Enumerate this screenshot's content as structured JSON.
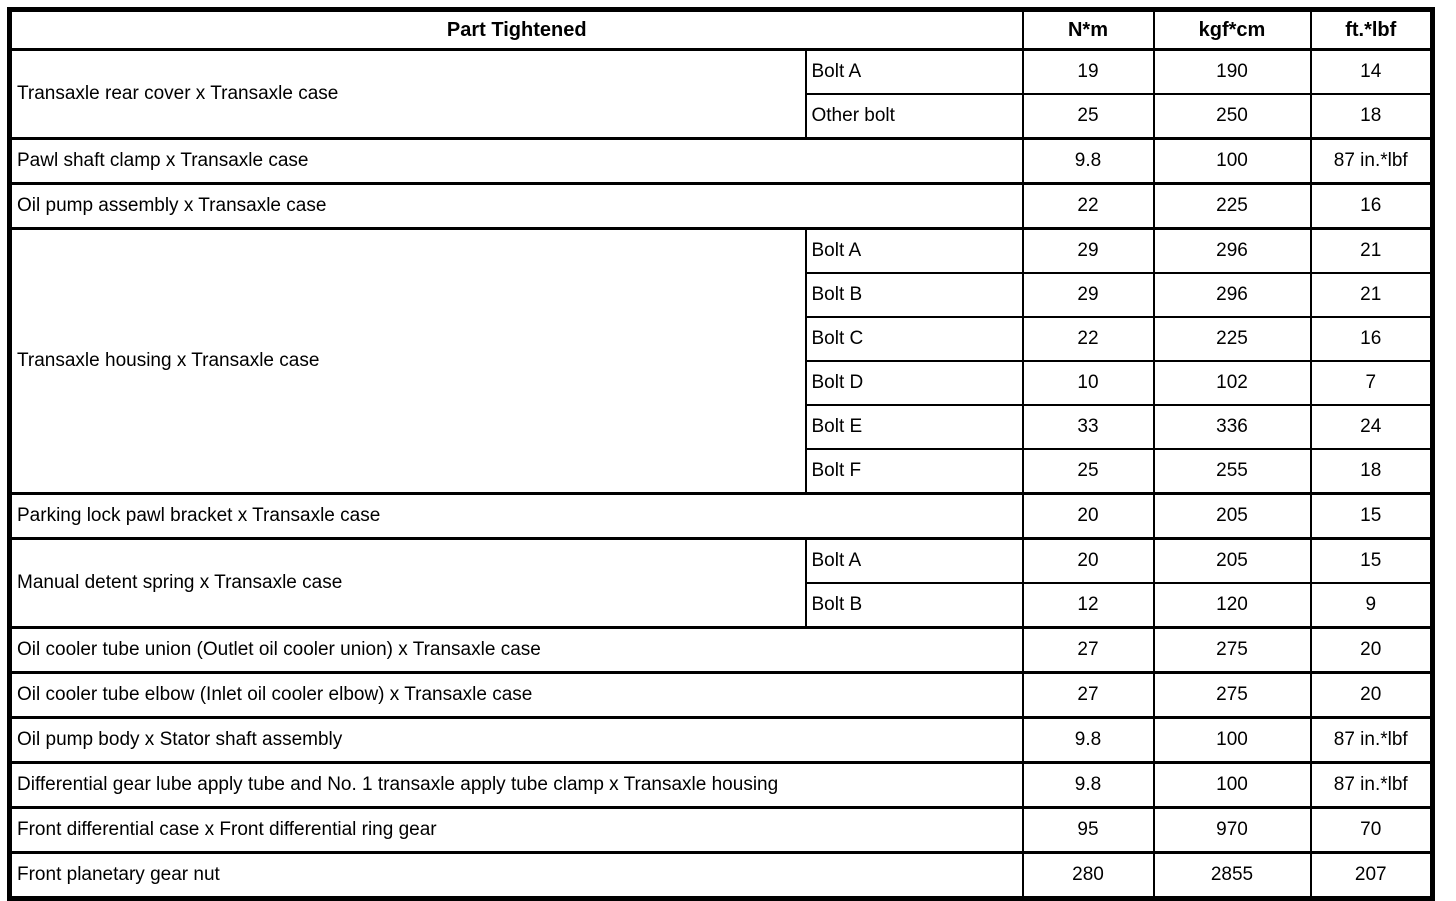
{
  "table": {
    "header": {
      "part_col": "Part Tightened",
      "unit_cols": [
        "N*m",
        "kgf*cm",
        "ft.*lbf"
      ]
    },
    "groups": [
      {
        "part": "Transaxle rear cover x Transaxle case",
        "rows": [
          {
            "label": "Bolt A",
            "nm": "19",
            "kgfcm": "190",
            "ftlbf": "14"
          },
          {
            "label": "Other bolt",
            "nm": "25",
            "kgfcm": "250",
            "ftlbf": "18"
          }
        ]
      },
      {
        "part": "Pawl shaft clamp x Transaxle case",
        "rows": [
          {
            "label": null,
            "nm": "9.8",
            "kgfcm": "100",
            "ftlbf": "87 in.*lbf"
          }
        ]
      },
      {
        "part": "Oil pump assembly x Transaxle case",
        "rows": [
          {
            "label": null,
            "nm": "22",
            "kgfcm": "225",
            "ftlbf": "16"
          }
        ]
      },
      {
        "part": "Transaxle housing x Transaxle case",
        "rows": [
          {
            "label": "Bolt A",
            "nm": "29",
            "kgfcm": "296",
            "ftlbf": "21"
          },
          {
            "label": "Bolt B",
            "nm": "29",
            "kgfcm": "296",
            "ftlbf": "21"
          },
          {
            "label": "Bolt C",
            "nm": "22",
            "kgfcm": "225",
            "ftlbf": "16"
          },
          {
            "label": "Bolt D",
            "nm": "10",
            "kgfcm": "102",
            "ftlbf": "7"
          },
          {
            "label": "Bolt E",
            "nm": "33",
            "kgfcm": "336",
            "ftlbf": "24"
          },
          {
            "label": "Bolt F",
            "nm": "25",
            "kgfcm": "255",
            "ftlbf": "18"
          }
        ]
      },
      {
        "part": "Parking lock pawl bracket x Transaxle case",
        "rows": [
          {
            "label": null,
            "nm": "20",
            "kgfcm": "205",
            "ftlbf": "15"
          }
        ]
      },
      {
        "part": "Manual detent spring x Transaxle case",
        "rows": [
          {
            "label": "Bolt A",
            "nm": "20",
            "kgfcm": "205",
            "ftlbf": "15"
          },
          {
            "label": "Bolt B",
            "nm": "12",
            "kgfcm": "120",
            "ftlbf": "9"
          }
        ]
      },
      {
        "part": "Oil cooler tube union (Outlet oil cooler union) x Transaxle case",
        "rows": [
          {
            "label": null,
            "nm": "27",
            "kgfcm": "275",
            "ftlbf": "20"
          }
        ]
      },
      {
        "part": "Oil cooler tube elbow (Inlet oil cooler elbow) x Transaxle case",
        "rows": [
          {
            "label": null,
            "nm": "27",
            "kgfcm": "275",
            "ftlbf": "20"
          }
        ]
      },
      {
        "part": "Oil pump body x Stator shaft assembly",
        "rows": [
          {
            "label": null,
            "nm": "9.8",
            "kgfcm": "100",
            "ftlbf": "87 in.*lbf"
          }
        ]
      },
      {
        "part": "Differential gear lube apply tube and No. 1 transaxle apply tube clamp x Transaxle housing",
        "rows": [
          {
            "label": null,
            "nm": "9.8",
            "kgfcm": "100",
            "ftlbf": "87 in.*lbf"
          }
        ]
      },
      {
        "part": "Front differential case x Front differential ring gear",
        "rows": [
          {
            "label": null,
            "nm": "95",
            "kgfcm": "970",
            "ftlbf": "70"
          }
        ]
      },
      {
        "part": "Front planetary gear nut",
        "rows": [
          {
            "label": null,
            "nm": "280",
            "kgfcm": "2855",
            "ftlbf": "207"
          }
        ]
      }
    ],
    "colors": {
      "border": "#000000",
      "text": "#000000",
      "background": "#ffffff"
    }
  }
}
